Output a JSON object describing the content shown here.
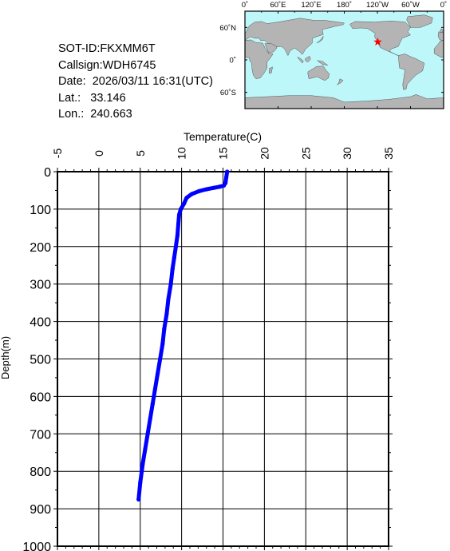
{
  "info": {
    "sot_id": "SOT-ID:FKXMM6T",
    "callsign": "Callsign:WDH6745",
    "date": "Date:  2026/03/11 16:31(UTC)",
    "lat": "Lat.:   33.146",
    "lon": "Lon.:  240.663"
  },
  "map": {
    "top_labels": [
      "0˚",
      "60˚E",
      "120˚E",
      "180˚",
      "120˚W",
      "60˚W",
      "0˚"
    ],
    "side_labels": [
      "60˚N",
      "0˚",
      "60˚S"
    ],
    "ocean_color": "#bdf7fa",
    "land_color": "#b4b4b4",
    "marker": {
      "lon": 240.663,
      "lat": 33.146,
      "color": "#ff0000"
    }
  },
  "chart_data": {
    "type": "line",
    "xlabel": "Temperature(C)",
    "ylabel": "Depth(m)",
    "xlim": [
      -5,
      35
    ],
    "ylim": [
      0,
      1000
    ],
    "y_inverted": true,
    "x_ticks": [
      "-5",
      "0",
      "5",
      "10",
      "15",
      "20",
      "25",
      "30",
      "35"
    ],
    "y_ticks": [
      "0",
      "100",
      "200",
      "300",
      "400",
      "500",
      "600",
      "700",
      "800",
      "900",
      "1000"
    ],
    "grid": true,
    "series_color": "#0000ff",
    "series": [
      {
        "x": [
          15.5,
          15.4,
          15.3,
          15.1,
          14.6,
          13.9,
          13.0,
          12.1,
          11.2,
          10.6,
          10.3,
          9.9,
          9.7,
          9.6,
          9.5,
          9.3,
          9.1,
          8.9,
          8.7,
          8.4,
          8.2,
          7.9,
          7.7,
          7.4,
          7.1,
          6.8,
          6.5,
          6.2,
          5.9,
          5.6,
          5.3,
          5.0,
          4.8
        ],
        "y": [
          0,
          15,
          30,
          37,
          40,
          43,
          47,
          52,
          60,
          70,
          85,
          100,
          115,
          140,
          170,
          200,
          230,
          260,
          300,
          340,
          380,
          420,
          460,
          500,
          540,
          580,
          620,
          660,
          700,
          740,
          780,
          830,
          875
        ]
      }
    ]
  }
}
